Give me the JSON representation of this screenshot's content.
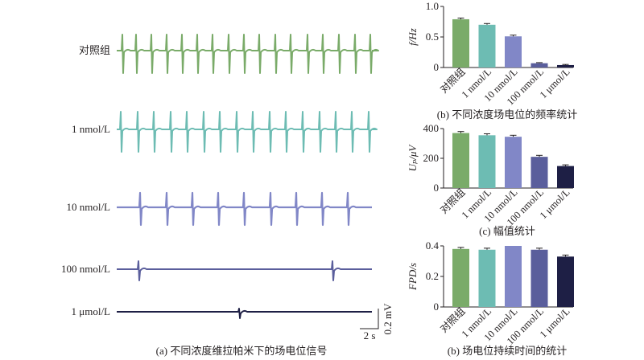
{
  "traces": {
    "groups": [
      {
        "label": "对照组",
        "color": "#7aab69",
        "spikes": 14
      },
      {
        "label": "1 nmol/L",
        "color": "#6dbcb3",
        "spikes": 14
      },
      {
        "label": "10 nmol/L",
        "color": "#8187c7",
        "spikes": 10
      },
      {
        "label": "100 nmol/L",
        "color": "#5a5e9c",
        "spikes": 2
      },
      {
        "label": "1 μmol/L",
        "color": "#1e1f45",
        "spikes": 1
      }
    ],
    "scalebar": {
      "time_label": "2 s",
      "amp_label": "0.2 mV"
    },
    "caption": "(a) 不同浓度维拉帕米下的场电位信号"
  },
  "chart_data": [
    {
      "type": "bar",
      "categories": [
        "对照组",
        "1 nmol/L",
        "10 nmol/L",
        "100 nmol/L",
        "1 μmol/L"
      ],
      "values": [
        0.79,
        0.7,
        0.51,
        0.07,
        0.04
      ],
      "errors": [
        0.02,
        0.02,
        0.02,
        0.01,
        0.01
      ],
      "colors": [
        "#7aab69",
        "#6dbcb3",
        "#8187c7",
        "#5a5e9c",
        "#1e1f45"
      ],
      "ylabel": "f/Hz",
      "ylim": [
        0,
        1.0
      ],
      "yticks": [
        "0",
        "0.5",
        "1.0"
      ],
      "caption": "(b) 不同浓度场电位的频率统计"
    },
    {
      "type": "bar",
      "categories": [
        "对照组",
        "1 nmol/L",
        "10 nmol/L",
        "100 nmol/L",
        "1 μmol/L"
      ],
      "values": [
        370,
        355,
        345,
        210,
        148
      ],
      "errors": [
        10,
        10,
        10,
        10,
        8
      ],
      "colors": [
        "#7aab69",
        "#6dbcb3",
        "#8187c7",
        "#5a5e9c",
        "#1e1f45"
      ],
      "ylabel": "Uₚ/μV",
      "ylim": [
        0,
        400
      ],
      "yticks": [
        "0",
        "200",
        "400"
      ],
      "caption": "(c) 幅值统计"
    },
    {
      "type": "bar",
      "categories": [
        "对照组",
        "1 nmol/L",
        "10 nmol/L",
        "100 nmol/L",
        "1 μmol/L"
      ],
      "values": [
        0.38,
        0.375,
        0.4,
        0.375,
        0.33
      ],
      "errors": [
        0.01,
        0.01,
        0.0,
        0.01,
        0.01
      ],
      "colors": [
        "#7aab69",
        "#6dbcb3",
        "#8187c7",
        "#5a5e9c",
        "#1e1f45"
      ],
      "ylabel": "FPD/s",
      "ylim": [
        0,
        0.4
      ],
      "yticks": [
        "0",
        "0.2",
        "0.4"
      ],
      "caption": "(b) 场电位持续时间的统计"
    }
  ]
}
